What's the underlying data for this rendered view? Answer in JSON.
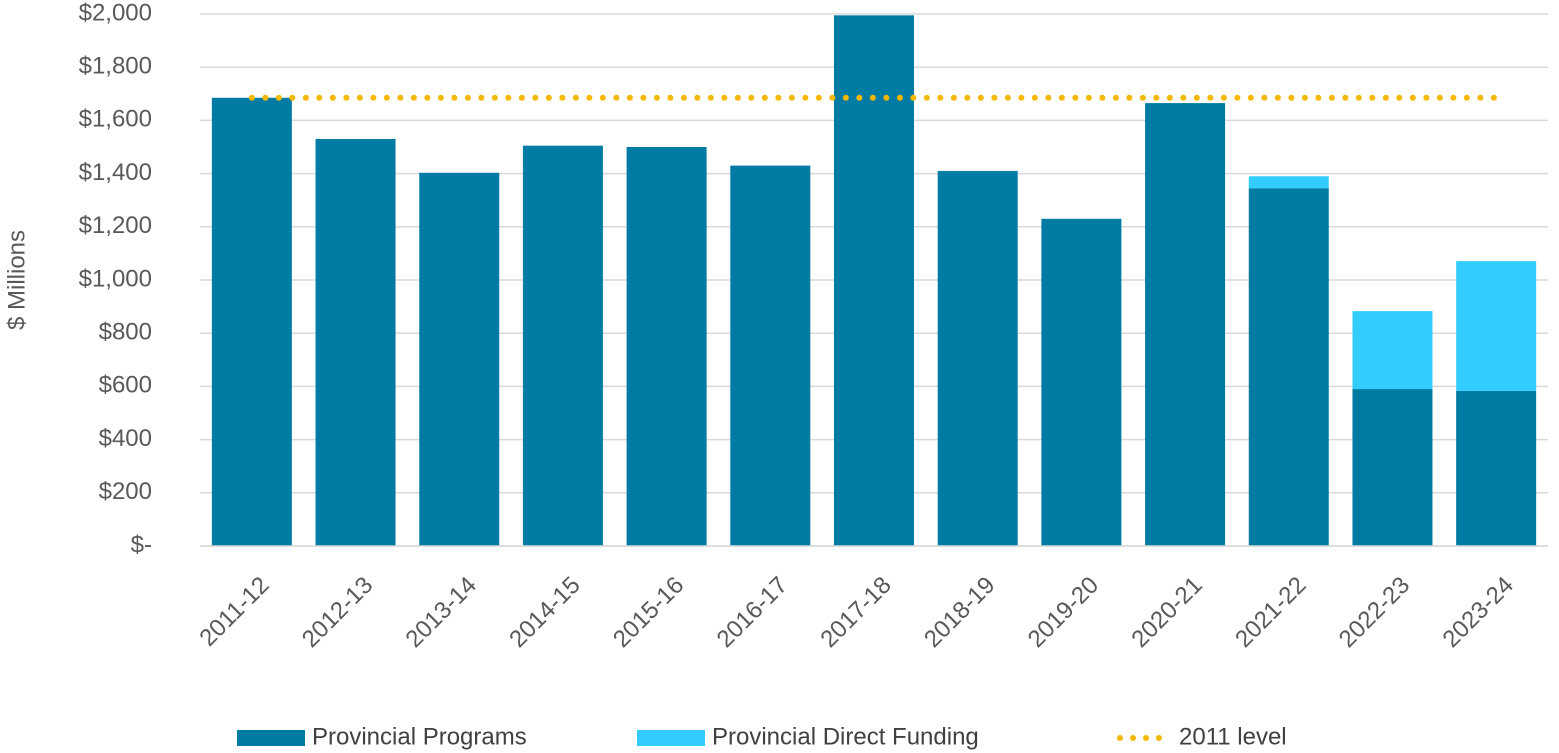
{
  "chart_data": {
    "type": "bar",
    "stacked": true,
    "y_label": "$ Millions",
    "categories": [
      "2011-12",
      "2012-13",
      "2013-14",
      "2014-15",
      "2015-16",
      "2016-17",
      "2017-18",
      "2018-19",
      "2019-20",
      "2020-21",
      "2021-22",
      "2022-23",
      "2023-24"
    ],
    "series": [
      {
        "name": "Provincial Programs",
        "type": "bar",
        "color": "#007ba3",
        "values": [
          1685,
          1530,
          1403,
          1505,
          1500,
          1430,
          1995,
          1410,
          1230,
          1665,
          1345,
          590,
          583
        ]
      },
      {
        "name": "Provincial Direct Funding",
        "type": "bar",
        "color": "#33ccff",
        "values": [
          0,
          0,
          0,
          0,
          0,
          0,
          0,
          0,
          0,
          0,
          45,
          293,
          488
        ]
      },
      {
        "name": "2011 level",
        "type": "line",
        "style": "dotted",
        "color": "#f5b800",
        "values": [
          1685,
          1685,
          1685,
          1685,
          1685,
          1685,
          1685,
          1685,
          1685,
          1685,
          1685,
          1685,
          1685
        ]
      }
    ],
    "ylim": [
      0,
      2000
    ],
    "yticks": [
      {
        "value": 0,
        "label": "$-"
      },
      {
        "value": 200,
        "label": "$200"
      },
      {
        "value": 400,
        "label": "$400"
      },
      {
        "value": 600,
        "label": "$600"
      },
      {
        "value": 800,
        "label": "$800"
      },
      {
        "value": 1000,
        "label": "$1,000"
      },
      {
        "value": 1200,
        "label": "$1,200"
      },
      {
        "value": 1400,
        "label": "$1,400"
      },
      {
        "value": 1600,
        "label": "$1,600"
      },
      {
        "value": 1800,
        "label": "$1,800"
      },
      {
        "value": 2000,
        "label": "$2,000"
      }
    ],
    "grid": true,
    "legend": "bottom"
  }
}
